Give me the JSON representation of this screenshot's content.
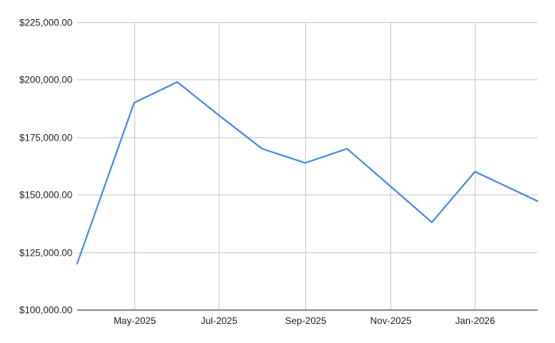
{
  "chart_data": {
    "type": "line",
    "title": "",
    "xlabel": "",
    "ylabel": "",
    "ylim": [
      100000,
      225000
    ],
    "y_ticks": [
      "$100,000.00",
      "$125,000.00",
      "$150,000.00",
      "$175,000.00",
      "$200,000.00",
      "$225,000.00"
    ],
    "y_tick_values": [
      100000,
      125000,
      150000,
      175000,
      200000,
      225000
    ],
    "x_range": [
      "2025-03-21",
      "2026-02-15"
    ],
    "x_ticks": [
      "May-2025",
      "Jul-2025",
      "Sep-2025",
      "Nov-2025",
      "Jan-2026"
    ],
    "x_tick_dates": [
      "2025-05-01",
      "2025-07-01",
      "2025-09-01",
      "2025-11-01",
      "2026-01-01"
    ],
    "grid": true,
    "legend": "none",
    "series": [
      {
        "color": "#4a86e8",
        "x": [
          "2025-03-21",
          "2025-05-01",
          "2025-06-01",
          "2025-07-01",
          "2025-08-01",
          "2025-09-01",
          "2025-10-01",
          "2025-11-01",
          "2025-12-01",
          "2026-01-01",
          "2026-02-15"
        ],
        "values": [
          120000,
          190000,
          199000,
          184500,
          170000,
          163800,
          170000,
          153800,
          138000,
          160000,
          147200
        ]
      }
    ]
  }
}
